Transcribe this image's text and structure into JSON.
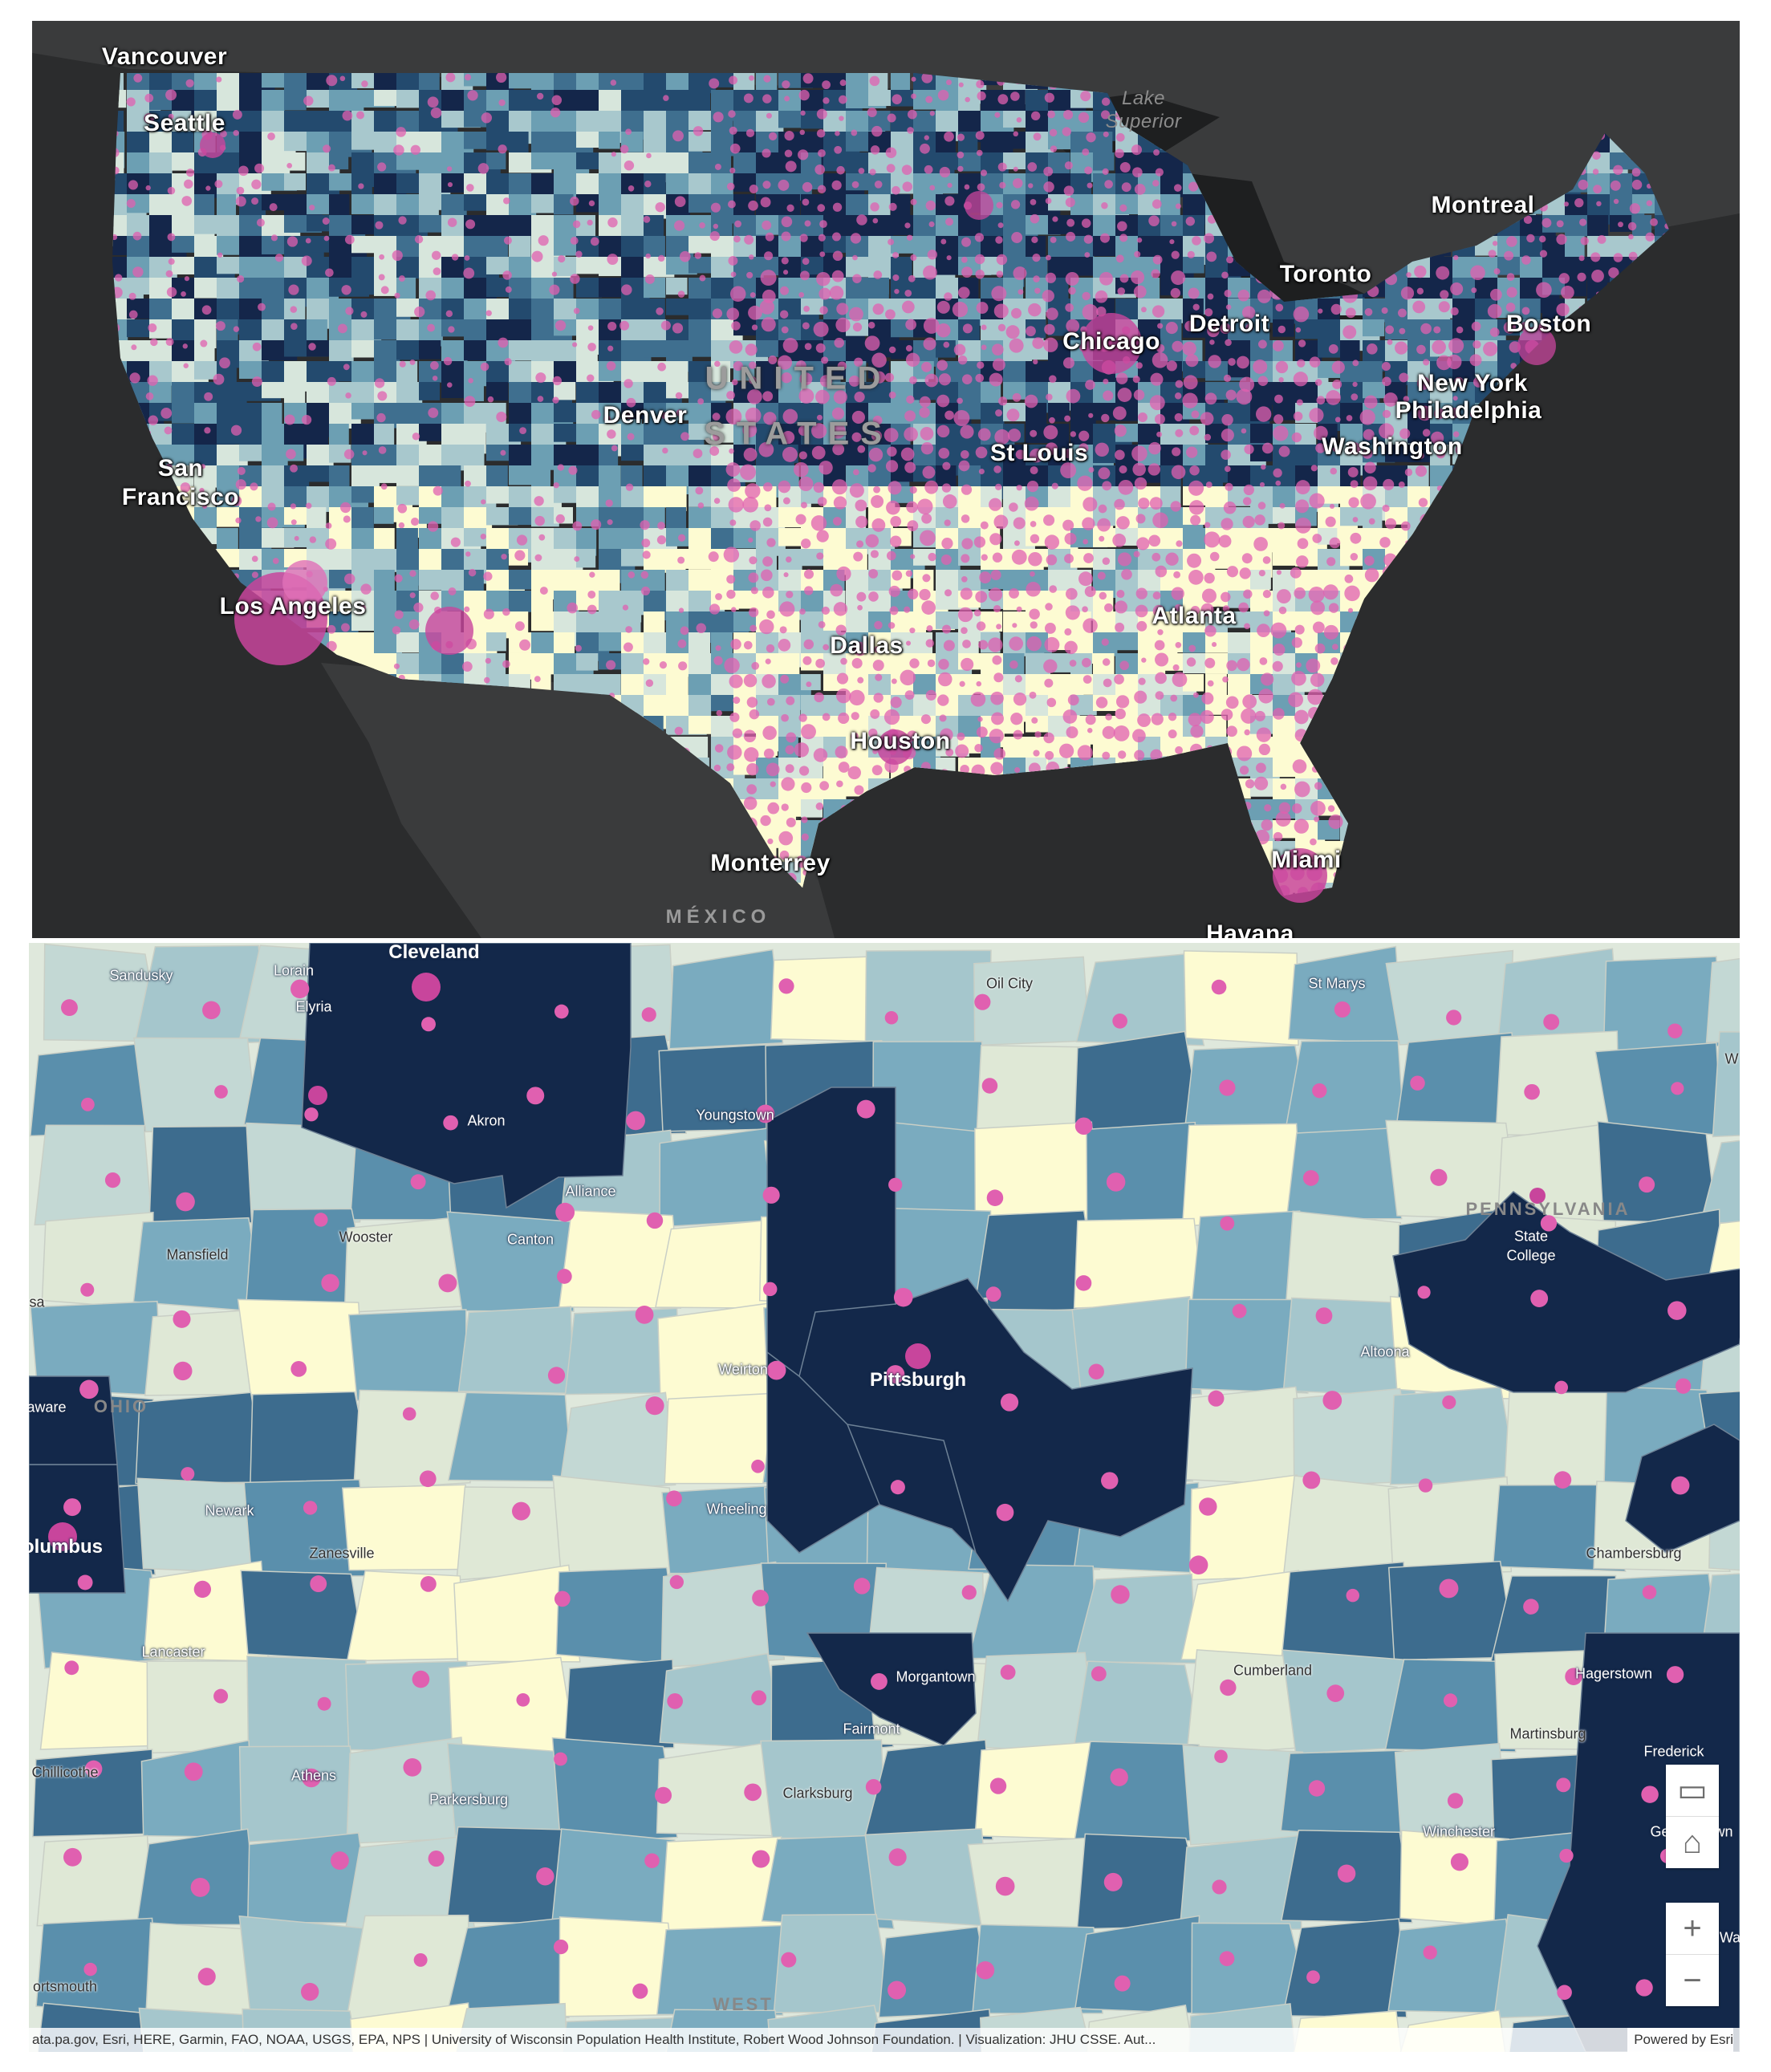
{
  "top_map": {
    "colors": {
      "background": "#2b2c2d",
      "land_other": "#3a3b3c",
      "bubble": "#e060b0",
      "choropleth": [
        "#fdfbd2",
        "#d7e6dc",
        "#a8c8cd",
        "#6c9fb3",
        "#3f6f8f",
        "#234a6e",
        "#14264a"
      ]
    },
    "labels": {
      "vancouver": "Vancouver",
      "seattle": "Seattle",
      "lake_superior_1": "Lake",
      "lake_superior_2": "Superior",
      "montreal": "Montreal",
      "toronto": "Toronto",
      "detroit": "Detroit",
      "chicago": "Chicago",
      "boston": "Boston",
      "new_york": "New York",
      "philadelphia": "Philadelphia",
      "washington": "Washington",
      "denver": "Denver",
      "united": "UNITED",
      "states": "STATES",
      "st_louis": "St Louis",
      "san_francisco_1": "San",
      "san_francisco_2": "Francisco",
      "los_angeles": "Los Angeles",
      "atlanta": "Atlanta",
      "dallas": "Dallas",
      "houston": "Houston",
      "monterrey": "Monterrey",
      "miami": "Miami",
      "mexico": "MÉXICO",
      "havana": "Havana"
    }
  },
  "bottom_map": {
    "labels": {
      "sandusky": "Sandusky",
      "lorain": "Lorain",
      "cleveland": "Cleveland",
      "elyria": "Elyria",
      "oil_city": "Oil City",
      "st_marys": "St Marys",
      "akron": "Akron",
      "youngstown": "Youngstown",
      "alliance": "Alliance",
      "mansfield": "Mansfield",
      "wooster": "Wooster",
      "canton": "Canton",
      "pennsylvania": "PENNSYLVANIA",
      "state_college_1": "State",
      "state_college_2": "College",
      "weirton": "Weirton",
      "pittsburgh": "Pittsburgh",
      "altoona": "Altoona",
      "ohio": "OHIO",
      "delaware": "aware",
      "newark": "Newark",
      "wheeling": "Wheeling",
      "columbus": "olumbus",
      "zanesville": "Zanesville",
      "chambersburg": "Chambersburg",
      "lancaster": "Lancaster",
      "morgantown": "Morgantown",
      "cumberland": "Cumberland",
      "hagerstown": "Hagerstown",
      "fairmont": "Fairmont",
      "martinsburg": "Martinsburg",
      "frederick": "Frederick",
      "chillicothe": "Chillicothe",
      "athens": "Athens",
      "parkersburg": "Parkersburg",
      "clarksburg": "Clarksburg",
      "winchester": "Winchester",
      "germantown": "Germantown",
      "portsmouth": "ortsmouth",
      "west": "WEST",
      "w_edge": "W",
      "wa_edge": "Wa",
      "sa_edge": "sa"
    },
    "controls": {
      "screen_icon": "▭",
      "home_icon": "⌂",
      "zoom_in": "+",
      "zoom_out": "−"
    },
    "attribution": "ata.pa.gov, Esri, HERE, Garmin, FAO, NOAA, USGS, EPA, NPS | University of Wisconsin Population Health Institute, Robert Wood Johnson Foundation. | Visualization: JHU CSSE. Aut...",
    "powered_by": "Powered by Esri"
  }
}
